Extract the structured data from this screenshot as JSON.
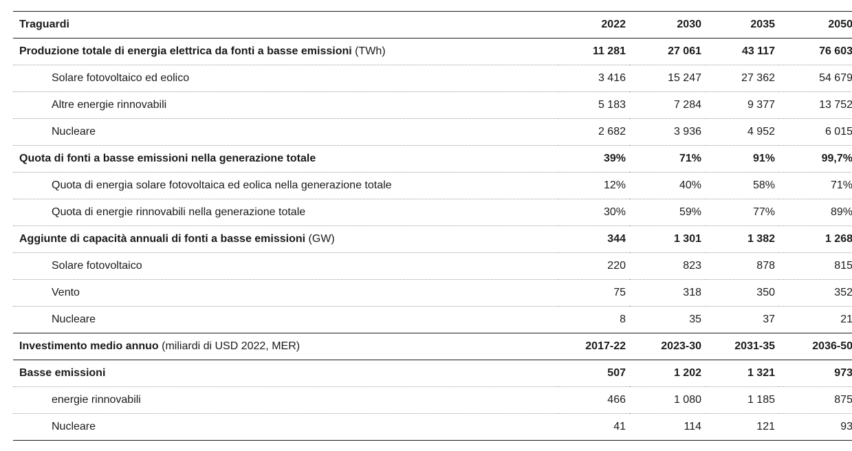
{
  "header": {
    "label": "Traguardi",
    "years": [
      "2022",
      "2030",
      "2035",
      "2050"
    ]
  },
  "rows": [
    {
      "label": "Produzione totale di energia elettrica da fonti a basse emissioni",
      "unit": "(TWh)",
      "values": [
        "11 281",
        "27 061",
        "43 117",
        "76 603"
      ]
    },
    {
      "label": "Solare fotovoltaico ed eolico",
      "values": [
        "3 416",
        "15 247",
        "27 362",
        "54 679"
      ]
    },
    {
      "label": "Altre energie rinnovabili",
      "values": [
        "5 183",
        "7 284",
        "9 377",
        "13 752"
      ]
    },
    {
      "label": "Nucleare",
      "values": [
        "2 682",
        "3 936",
        "4 952",
        "6 015"
      ]
    },
    {
      "label": "Quota di fonti a basse emissioni nella generazione totale",
      "values": [
        "39%",
        "71%",
        "91%",
        "99,7%"
      ]
    },
    {
      "label": "Quota di energia solare fotovoltaica ed eolica nella generazione totale",
      "values": [
        "12%",
        "40%",
        "58%",
        "71%"
      ]
    },
    {
      "label": "Quota di energie rinnovabili nella generazione totale",
      "values": [
        "30%",
        "59%",
        "77%",
        "89%"
      ]
    },
    {
      "label": "Aggiunte di capacità annuali di fonti a basse emissioni",
      "unit": "(GW)",
      "values": [
        "344",
        "1 301",
        "1 382",
        "1 268"
      ]
    },
    {
      "label": "Solare fotovoltaico",
      "values": [
        "220",
        "823",
        "878",
        "815"
      ]
    },
    {
      "label": "Vento",
      "values": [
        "75",
        "318",
        "350",
        "352"
      ]
    },
    {
      "label": "Nucleare",
      "values": [
        "8",
        "35",
        "37",
        "21"
      ]
    },
    {
      "label": "Investimento medio annuo",
      "unit": "(miliardi di USD 2022, MER)",
      "values": [
        "2017-22",
        "2023-30",
        "2031-35",
        "2036-50"
      ]
    },
    {
      "label": "Basse emissioni",
      "values": [
        "507",
        "1 202",
        "1 321",
        "973"
      ]
    },
    {
      "label": "energie rinnovabili",
      "values": [
        "466",
        "1 080",
        "1 185",
        "875"
      ]
    },
    {
      "label": "Nucleare",
      "values": [
        "41",
        "114",
        "121",
        "93"
      ]
    }
  ]
}
